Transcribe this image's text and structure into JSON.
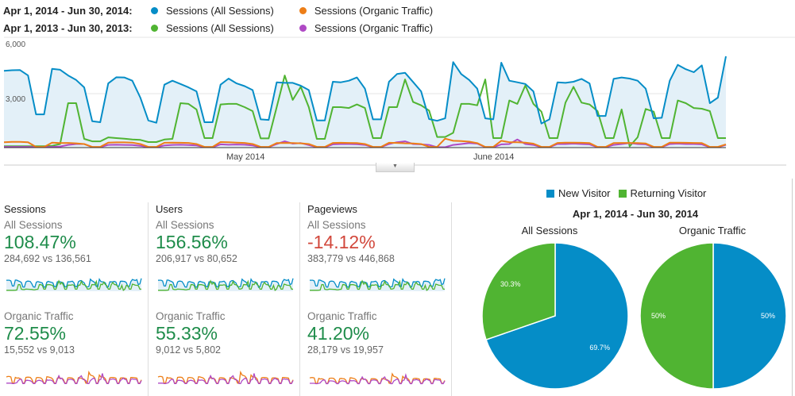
{
  "legend": {
    "rows": [
      {
        "period": "Apr 1, 2014 - Jun 30, 2014:",
        "items": [
          {
            "label": "Sessions (All Sessions)",
            "color": "#058dc7"
          },
          {
            "label": "Sessions (Organic Traffic)",
            "color": "#ed7e17"
          }
        ]
      },
      {
        "period": "Apr 1, 2013 - Jun 30, 2013:",
        "items": [
          {
            "label": "Sessions (All Sessions)",
            "color": "#50b432"
          },
          {
            "label": "Sessions (Organic Traffic)",
            "color": "#af49c5"
          }
        ]
      }
    ]
  },
  "chart_data": [
    {
      "type": "line",
      "x_range": [
        "Apr 1",
        "Jun 30"
      ],
      "x_tick_labels": [
        "May 2014",
        "June 2014"
      ],
      "y_tick_labels": [
        "6,000",
        "3,000"
      ],
      "ylim": [
        0,
        6000
      ],
      "grid": true,
      "series": [
        {
          "name": "Sessions (All Sessions) 2014",
          "color": "#058dc7",
          "values": [
            4265,
            4300,
            4310,
            4010,
            1850,
            1850,
            4380,
            4330,
            4010,
            3760,
            3350,
            1470,
            1410,
            3570,
            3910,
            3900,
            3720,
            2780,
            1510,
            1380,
            3500,
            3720,
            3540,
            3350,
            3130,
            1410,
            1410,
            3500,
            3840,
            3570,
            3420,
            3200,
            1570,
            1540,
            3630,
            3600,
            3600,
            3440,
            3200,
            1510,
            1510,
            3660,
            3630,
            3720,
            3900,
            3280,
            1570,
            1570,
            3660,
            4090,
            4160,
            3650,
            3130,
            1590,
            1490,
            1630,
            4750,
            4090,
            3760,
            3280,
            1630,
            1570,
            4720,
            3720,
            3630,
            3540,
            3130,
            1340,
            1570,
            3630,
            3600,
            3660,
            3820,
            3570,
            1760,
            1760,
            3820,
            3900,
            3840,
            3720,
            3280,
            1630,
            1660,
            3720,
            4600,
            4360,
            4190,
            4570,
            2470,
            2780,
            5080
          ]
        },
        {
          "name": "Sessions (Organic Traffic) 2014",
          "color": "#ed7e17",
          "values": [
            300,
            320,
            320,
            300,
            40,
            40,
            280,
            250,
            260,
            240,
            200,
            40,
            40,
            280,
            290,
            290,
            280,
            200,
            40,
            40,
            270,
            280,
            270,
            260,
            200,
            40,
            40,
            310,
            300,
            280,
            260,
            200,
            40,
            40,
            250,
            260,
            250,
            240,
            200,
            40,
            40,
            260,
            270,
            260,
            250,
            200,
            40,
            40,
            270,
            260,
            240,
            230,
            200,
            40,
            40,
            500,
            380,
            360,
            330,
            250,
            40,
            40,
            380,
            300,
            300,
            280,
            220,
            40,
            40,
            260,
            280,
            280,
            270,
            250,
            40,
            40,
            250,
            260,
            260,
            250,
            230,
            40,
            40,
            280,
            280,
            270,
            260,
            250,
            40,
            40,
            180
          ]
        },
        {
          "name": "Sessions (All Sessions) 2013",
          "color": "#50b432",
          "values": [
            80,
            80,
            80,
            80,
            80,
            80,
            100,
            200,
            2470,
            2470,
            485,
            350,
            350,
            570,
            530,
            500,
            450,
            430,
            310,
            310,
            450,
            485,
            2470,
            2430,
            2120,
            530,
            530,
            2400,
            2430,
            2430,
            2250,
            2030,
            510,
            510,
            2250,
            4010,
            2650,
            3380,
            2250,
            485,
            485,
            2250,
            2250,
            2200,
            2400,
            2200,
            530,
            530,
            2250,
            2250,
            3790,
            2540,
            2350,
            2060,
            590,
            590,
            820,
            2430,
            2430,
            2350,
            3790,
            530,
            530,
            2620,
            2430,
            3460,
            2430,
            2000,
            530,
            530,
            2500,
            3380,
            2500,
            2400,
            2030,
            530,
            530,
            2120,
            70,
            580,
            2150,
            2000,
            530,
            530,
            2620,
            2470,
            2200,
            2160,
            2030,
            530,
            530
          ]
        },
        {
          "name": "Sessions (Organic Traffic) 2013",
          "color": "#af49c5",
          "values": [
            40,
            40,
            40,
            40,
            20,
            20,
            40,
            60,
            150,
            200,
            200,
            20,
            20,
            150,
            160,
            150,
            140,
            100,
            20,
            20,
            120,
            150,
            160,
            140,
            120,
            20,
            20,
            180,
            160,
            170,
            160,
            120,
            20,
            20,
            200,
            350,
            220,
            250,
            140,
            20,
            20,
            180,
            200,
            200,
            190,
            150,
            20,
            20,
            200,
            300,
            350,
            200,
            180,
            150,
            20,
            20,
            150,
            200,
            250,
            220,
            20,
            20,
            180,
            200,
            450,
            200,
            150,
            20,
            20,
            200,
            200,
            220,
            200,
            180,
            20,
            20,
            150,
            200,
            250,
            200,
            180,
            20,
            20,
            200,
            220,
            200,
            200,
            180,
            20,
            20,
            150
          ]
        }
      ]
    },
    {
      "type": "pie",
      "title": "Apr 1, 2014 - Jun 30, 2014",
      "subtitle": "All Sessions",
      "legend": [
        "New Visitor",
        "Returning Visitor"
      ],
      "slices": [
        {
          "label": "New Visitor",
          "value": 69.7,
          "text": "69.7%",
          "color": "#058dc7"
        },
        {
          "label": "Returning Visitor",
          "value": 30.3,
          "text": "30.3%",
          "color": "#50b432"
        }
      ]
    },
    {
      "type": "pie",
      "subtitle": "Organic Traffic",
      "slices": [
        {
          "label": "New Visitor",
          "value": 50,
          "text": "50%",
          "color": "#058dc7"
        },
        {
          "label": "Returning Visitor",
          "value": 50,
          "text": "50%",
          "color": "#50b432"
        }
      ]
    }
  ],
  "metrics": [
    {
      "title": "Sessions",
      "segments": [
        {
          "label": "All Sessions",
          "pct": "108.47%",
          "cmp": "284,692 vs 136,561",
          "trend": "up"
        },
        {
          "label": "Organic Traffic",
          "pct": "72.55%",
          "cmp": "15,552 vs 9,013",
          "trend": "up"
        }
      ]
    },
    {
      "title": "Users",
      "segments": [
        {
          "label": "All Sessions",
          "pct": "156.56%",
          "cmp": "206,917 vs 80,652",
          "trend": "up"
        },
        {
          "label": "Organic Traffic",
          "pct": "55.33%",
          "cmp": "9,012 vs 5,802",
          "trend": "up"
        }
      ]
    },
    {
      "title": "Pageviews",
      "segments": [
        {
          "label": "All Sessions",
          "pct": "-14.12%",
          "cmp": "383,779 vs 446,868",
          "trend": "down"
        },
        {
          "label": "Organic Traffic",
          "pct": "41.20%",
          "cmp": "28,179 vs 19,957",
          "trend": "up"
        }
      ]
    }
  ],
  "colors": {
    "up": "#1e8c4a",
    "down": "#d2483c",
    "fill": "#e3f0f8"
  }
}
